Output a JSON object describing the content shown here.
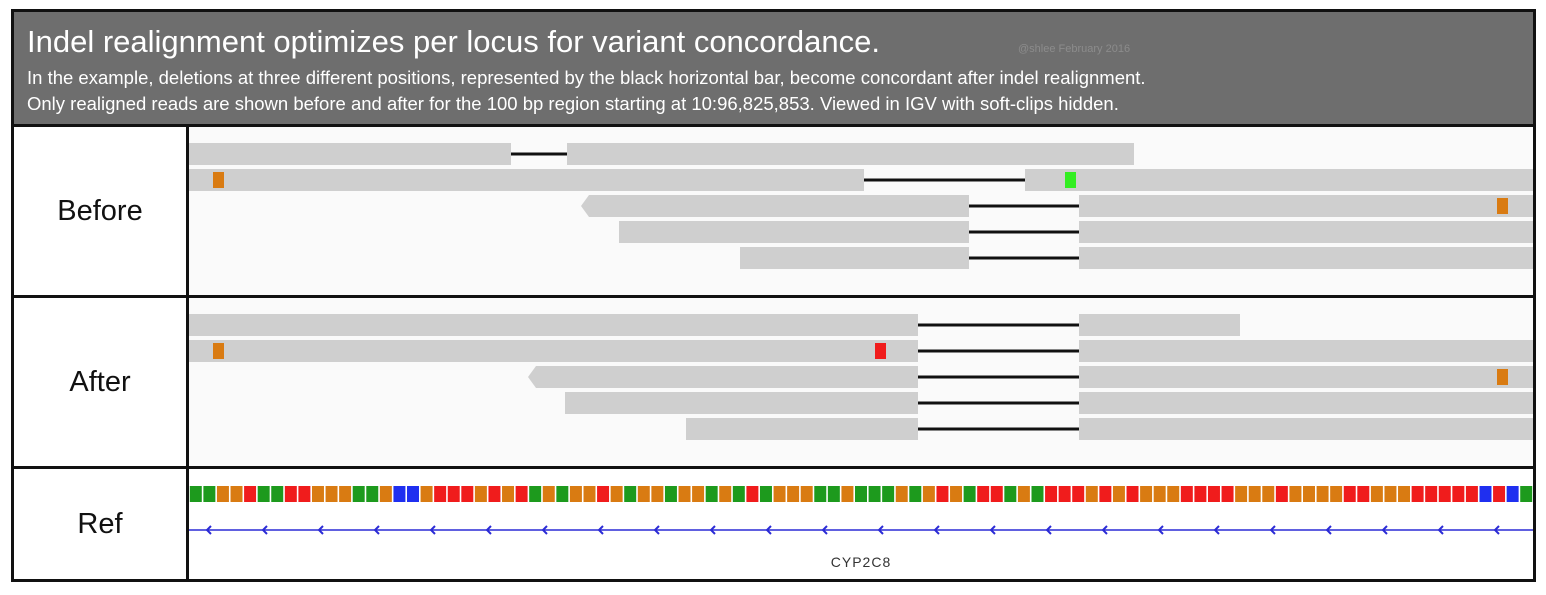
{
  "header": {
    "title": "Indel realignment optimizes per locus for variant concordance.",
    "watermark": "@shlee February 2016",
    "line1": "In the example, deletions at three different positions, represented by the black horizontal bar, become concordant after indel realignment.",
    "line2": "Only realigned reads are shown before and after for the 100 bp region starting at 10:96,825,853. Viewed in IGV with soft-clips hidden."
  },
  "panels": {
    "before_label": "Before",
    "after_label": "After",
    "ref_label": "Ref"
  },
  "gene": {
    "name": "CYP2C8"
  },
  "colors": {
    "read": "#cfcfcf",
    "deletion": "#111111",
    "A": "#1d9a1d",
    "C": "#1f2ff0",
    "G": "#d97b12",
    "T": "#f01c1c",
    "green_mismatch": "#33ee22",
    "gene_line": "#2b2bd6"
  },
  "reference_sequence": "AAGGTAATTGGGAAGCCGTTTGTGTAGAGGTGAGGAGGAGATAGGGAAGAAAGAGTGATTAGATTTGTGTGGGTTTTGGGTGGGGTTGGGTTTTTCTCA"
}
